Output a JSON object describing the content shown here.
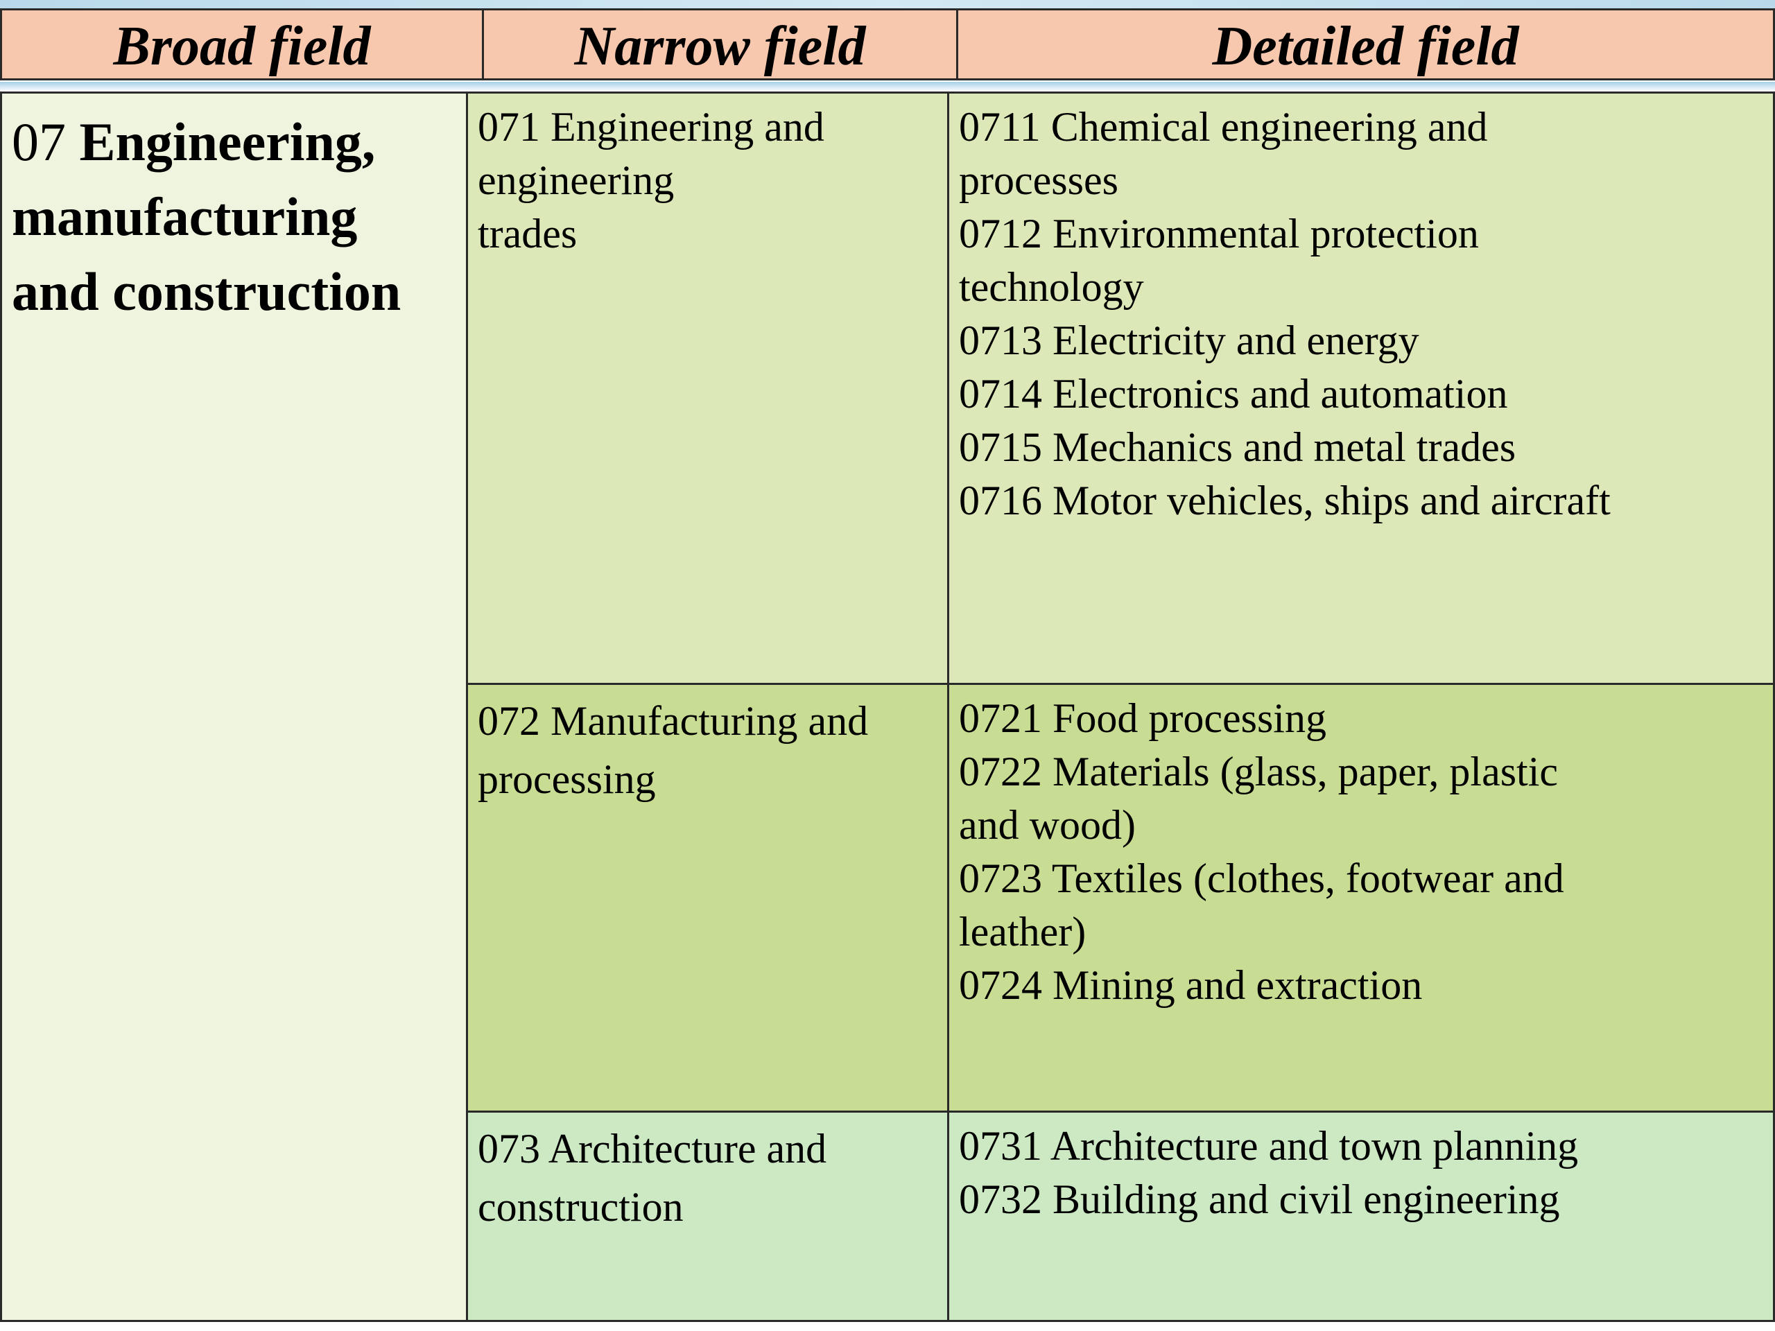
{
  "table": {
    "headers": {
      "broad": "Broad field",
      "narrow": "Narrow field",
      "detailed": "Detailed field"
    },
    "broad_field": {
      "code": "07 ",
      "title_lines": [
        "Engineering,",
        "manufacturing",
        "and construction"
      ]
    },
    "rows": [
      {
        "narrow_lines": [
          "071 Engineering and",
          "engineering",
          "trades"
        ],
        "detailed_lines": [
          "0711 Chemical engineering and",
          "processes",
          "0712 Environmental protection",
          "technology",
          "0713 Electricity and energy",
          "0714 Electronics and automation",
          "0715 Mechanics and metal trades",
          "0716 Motor vehicles, ships and aircraft"
        ]
      },
      {
        "narrow_lines": [
          "072 Manufacturing and",
          "processing"
        ],
        "detailed_lines": [
          "0721 Food processing",
          "0722 Materials (glass, paper, plastic",
          "and wood)",
          "0723 Textiles (clothes, footwear and",
          "leather)",
          "0724 Mining and extraction"
        ]
      },
      {
        "narrow_lines": [
          "073 Architecture and",
          "construction"
        ],
        "detailed_lines": [
          "0731 Architecture and town planning",
          "0732 Building and civil engineering"
        ]
      }
    ]
  }
}
